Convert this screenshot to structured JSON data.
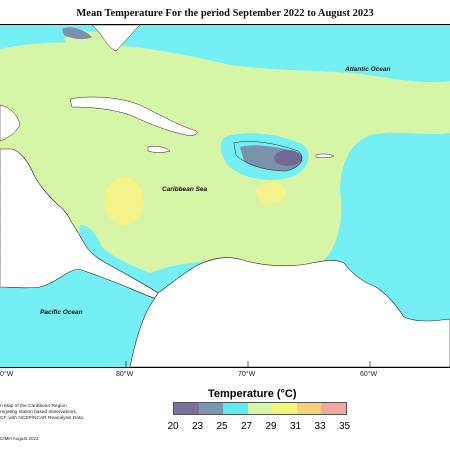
{
  "title": "Mean Temperature For the period September 2022 to August 2023",
  "map": {
    "ocean_labels": {
      "atlantic": "Atlantic Ocean",
      "caribbean": "Caribbean Sea",
      "pacific": "Pacific Ocean"
    },
    "lon_labels": [
      "0°W",
      "80°W",
      "70°W",
      "60°W"
    ]
  },
  "legend": {
    "title": "Temperature (°C)",
    "ticks": [
      "20",
      "23",
      "25",
      "27",
      "29",
      "31",
      "33",
      "35"
    ],
    "colors": [
      "#7a6f9e",
      "#7d97b0",
      "#5cecf0",
      "#d6f7a8",
      "#f5f57a",
      "#f5d27a",
      "#f2a89e"
    ]
  },
  "description": {
    "line1": "n Map of the Caribbean Region",
    "line2": "regating station based observations,",
    "line3": "CF, with NCEP/NCAR Reanalysis Data."
  },
  "credit": "CIMH August 2023",
  "colors": {
    "cyan": "#74f0f5",
    "light_green": "#d7f5a6",
    "yellow": "#f3f38a",
    "purple": "#716a97",
    "slate": "#7a92ab",
    "land": "#ffffff"
  }
}
